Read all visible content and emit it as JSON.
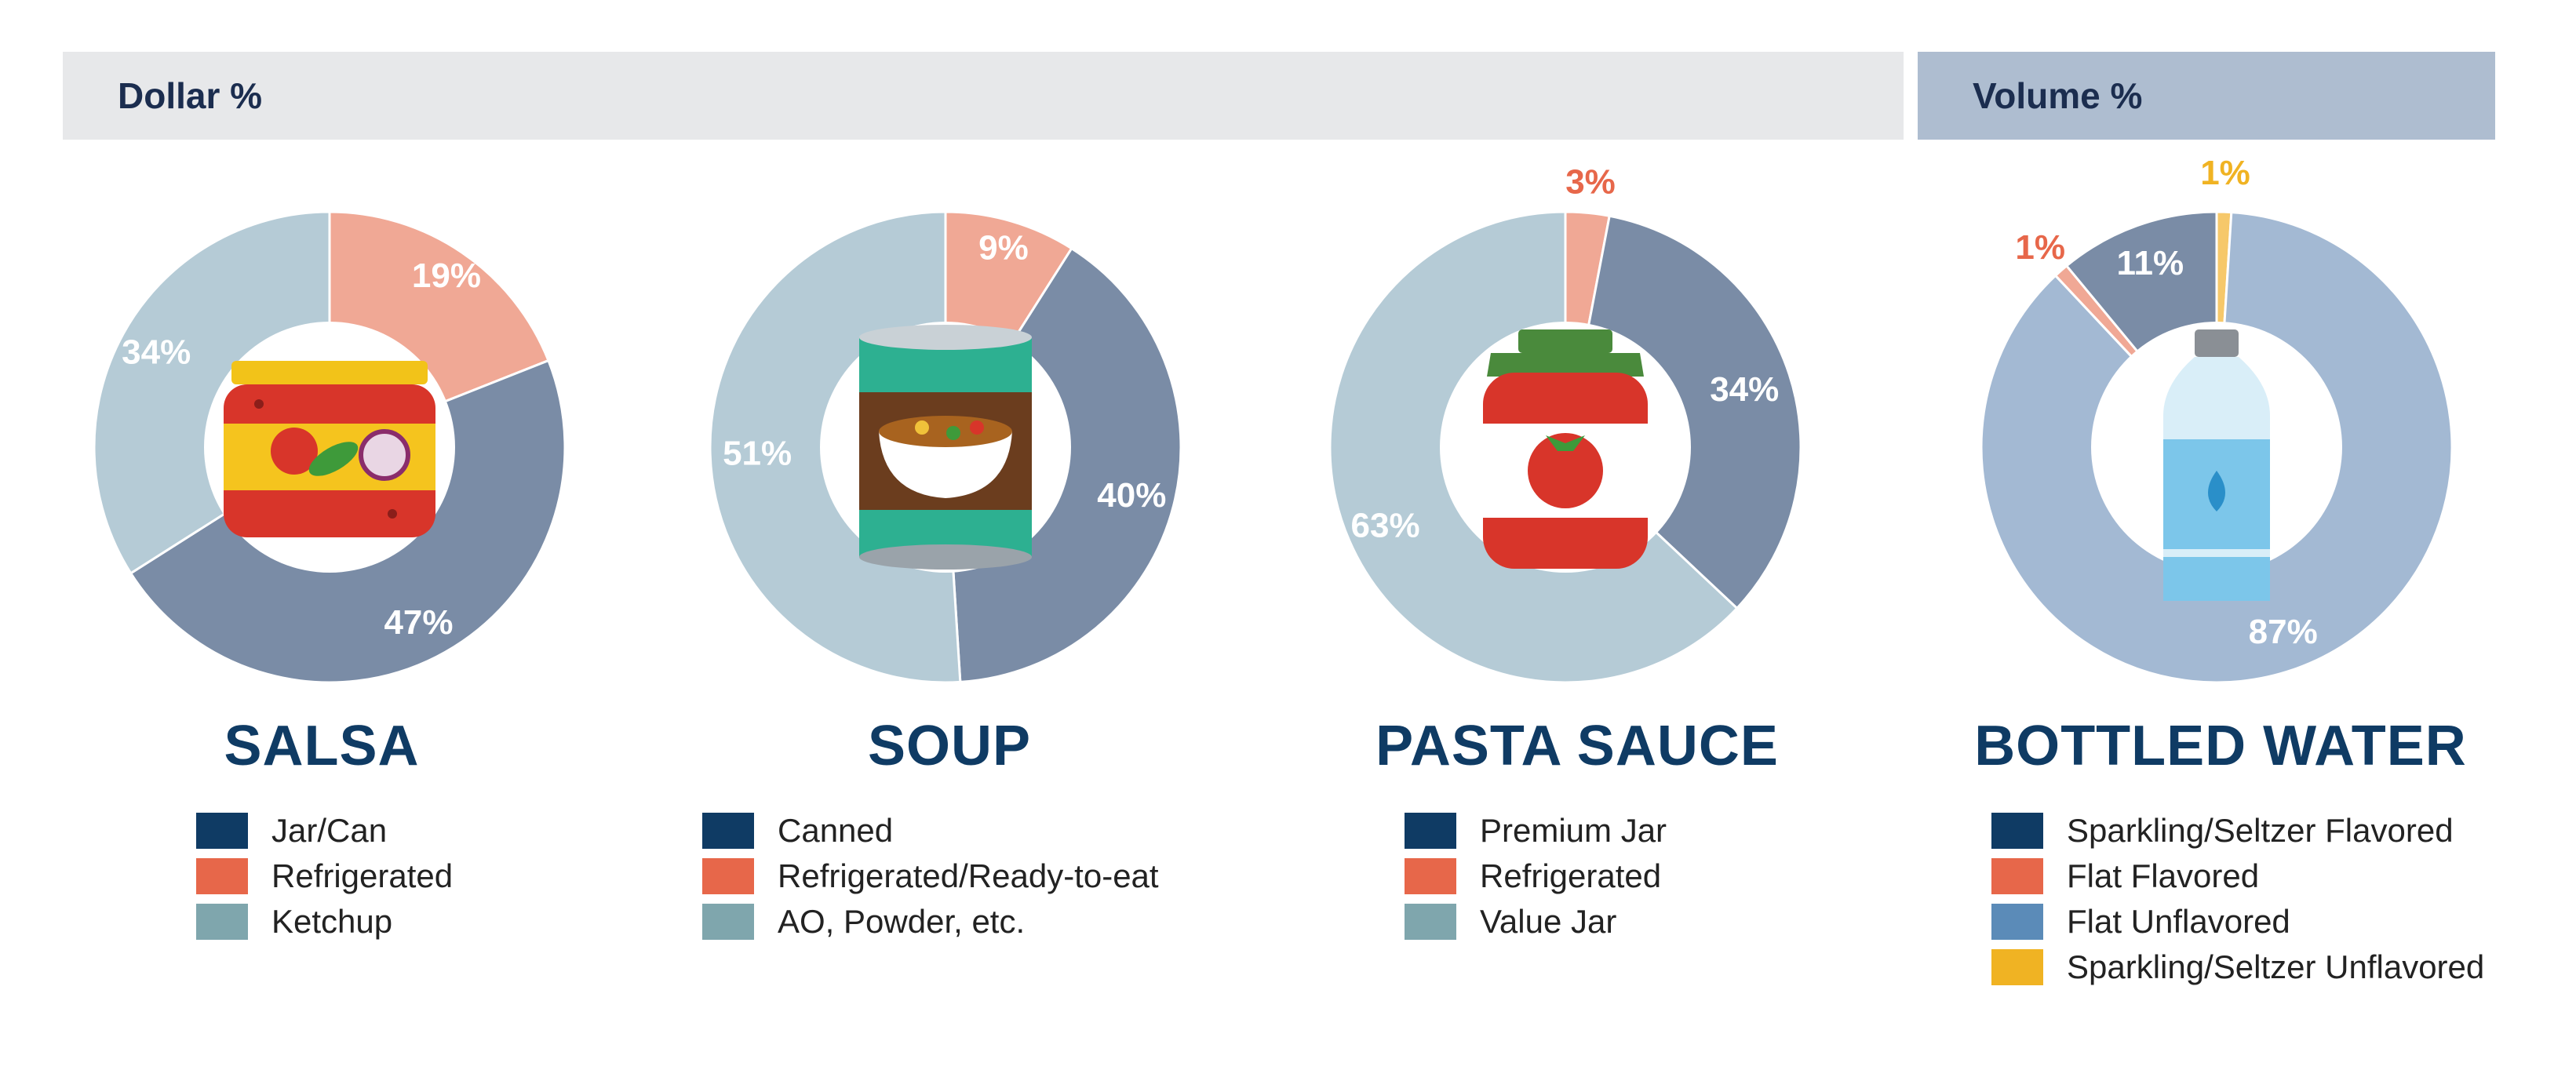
{
  "header": {
    "dollar_label": "Dollar %",
    "volume_label": "Volume %"
  },
  "chart_data": [
    {
      "type": "pie",
      "title": "SALSA",
      "icon": "salsa-jar-icon",
      "categories": [
        "Refrigerated",
        "Jar/Can",
        "Ketchup"
      ],
      "values": [
        19,
        47,
        34
      ],
      "slice_colors": [
        "#f0a895",
        "#7a8ca6",
        "#b5cbd6"
      ],
      "label_colors": [
        "#ffffff",
        "#ffffff",
        "#ffffff"
      ],
      "labels": [
        "19%",
        "47%",
        "34%"
      ],
      "legend": [
        {
          "label": "Jar/Can",
          "color": "#0f3b64"
        },
        {
          "label": "Refrigerated",
          "color": "#e7674a"
        },
        {
          "label": "Ketchup",
          "color": "#7fa6ad"
        }
      ]
    },
    {
      "type": "pie",
      "title": "SOUP",
      "icon": "soup-can-icon",
      "categories": [
        "Refrigerated/Ready-to-eat",
        "Canned",
        "AO, Powder, etc."
      ],
      "values": [
        9,
        40,
        51
      ],
      "slice_colors": [
        "#f0a895",
        "#7a8ca6",
        "#b5cbd6"
      ],
      "label_colors": [
        "#ffffff",
        "#ffffff",
        "#ffffff"
      ],
      "labels": [
        "9%",
        "40%",
        "51%"
      ],
      "legend": [
        {
          "label": "Canned",
          "color": "#0f3b64"
        },
        {
          "label": "Refrigerated/Ready-to-eat",
          "color": "#e7674a"
        },
        {
          "label": "AO, Powder, etc.",
          "color": "#7fa6ad"
        }
      ]
    },
    {
      "type": "pie",
      "title": "PASTA SAUCE",
      "icon": "pasta-sauce-jar-icon",
      "categories": [
        "Refrigerated",
        "Premium Jar",
        "Value Jar"
      ],
      "values": [
        3,
        34,
        63
      ],
      "slice_colors": [
        "#f0a895",
        "#7a8ca6",
        "#b5cbd6"
      ],
      "label_colors": [
        "#e7674a",
        "#ffffff",
        "#ffffff"
      ],
      "labels": [
        "3%",
        "34%",
        "63%"
      ],
      "legend": [
        {
          "label": "Premium Jar",
          "color": "#0f3b64"
        },
        {
          "label": "Refrigerated",
          "color": "#e7674a"
        },
        {
          "label": "Value Jar",
          "color": "#7fa6ad"
        }
      ]
    },
    {
      "type": "pie",
      "title": "BOTTLED WATER",
      "icon": "water-bottle-icon",
      "categories": [
        "Sparkling/Seltzer Unflavored",
        "Flat Unflavored",
        "Flat Flavored",
        "Sparkling/Seltzer Flavored"
      ],
      "values": [
        1,
        87,
        1,
        11
      ],
      "slice_colors": [
        "#f6c86a",
        "#a3b9d3",
        "#f0a895",
        "#7a8ca6"
      ],
      "label_colors": [
        "#f0b323",
        "#ffffff",
        "#e7674a",
        "#ffffff"
      ],
      "labels": [
        "1%",
        "87%",
        "1%",
        "11%"
      ],
      "legend": [
        {
          "label": "Sparkling/Seltzer Flavored",
          "color": "#0f3b64"
        },
        {
          "label": "Flat Flavored",
          "color": "#e7674a"
        },
        {
          "label": "Flat Unflavored",
          "color": "#5b8bb8"
        },
        {
          "label": "Sparkling/Seltzer Unflavored",
          "color": "#f0b323"
        }
      ]
    }
  ]
}
